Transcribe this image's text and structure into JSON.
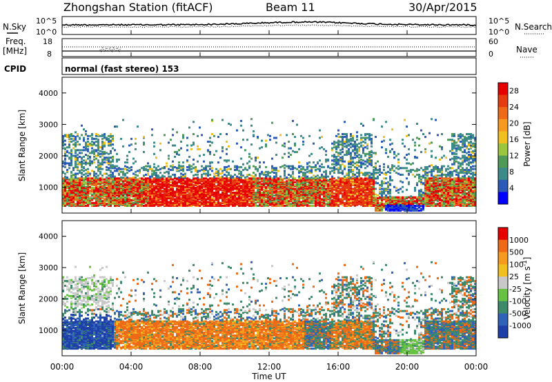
{
  "header": {
    "station": "Zhongshan Station (fitACF)",
    "beam": "Beam 11",
    "date": "30/Apr/2015"
  },
  "noise_panel": {
    "left_label": "N.Sky",
    "right_label": "N.Search",
    "left_ticks": [
      "10^5",
      "10^0"
    ],
    "right_ticks": [
      "10^5",
      "10^0"
    ]
  },
  "freq_panel": {
    "left_label_1": "Freq.",
    "left_label_2": "[MHz]",
    "right_label": "Nave",
    "left_ticks": [
      "18",
      "8"
    ],
    "right_ticks": [
      "60",
      "0"
    ]
  },
  "cpid": {
    "label": "CPID",
    "mode": "normal (fast stereo) 153"
  },
  "chart_data": [
    {
      "type": "heatmap",
      "name": "power",
      "ylabel": "Slant Range [km]",
      "xlabel": "Time UT",
      "x_ticks": [
        "00:00",
        "04:00",
        "08:00",
        "12:00",
        "16:00",
        "20:00",
        "00:00"
      ],
      "xlim_hours": [
        0,
        24
      ],
      "ylim_km": [
        180,
        4500
      ],
      "y_ticks": [
        1000,
        2000,
        3000,
        4000
      ],
      "colorbar": {
        "label": "Power [dB]",
        "ticks": [
          "4",
          "8",
          "12",
          "16",
          "20",
          "24",
          "28"
        ],
        "range": [
          0,
          30
        ],
        "colors": [
          "#0000ff",
          "#2a59b8",
          "#3c8a8a",
          "#4f9a56",
          "#9bc53d",
          "#f0c020",
          "#f59a1e",
          "#ef6a16",
          "#e63b10",
          "#e60000"
        ]
      }
    },
    {
      "type": "heatmap",
      "name": "velocity",
      "ylabel": "Slant Range [km]",
      "xlabel": "Time UT",
      "x_ticks": [
        "00:00",
        "04:00",
        "08:00",
        "12:00",
        "16:00",
        "20:00",
        "00:00"
      ],
      "xlim_hours": [
        0,
        24
      ],
      "ylim_km": [
        180,
        4500
      ],
      "y_ticks": [
        1000,
        2000,
        3000,
        4000
      ],
      "colorbar": {
        "label": "Velocity [m s^-1]",
        "ticks": [
          "1000",
          "500",
          "100",
          "25",
          "-25",
          "-100",
          "-500",
          "-1000"
        ],
        "colors": [
          "#1f3fa8",
          "#2f62b8",
          "#3c8a6a",
          "#66c240",
          "#c8c8c8",
          "#f0c020",
          "#f59a1e",
          "#ef6a16",
          "#e60000"
        ]
      }
    }
  ],
  "x_axis": {
    "title": "Time UT"
  }
}
